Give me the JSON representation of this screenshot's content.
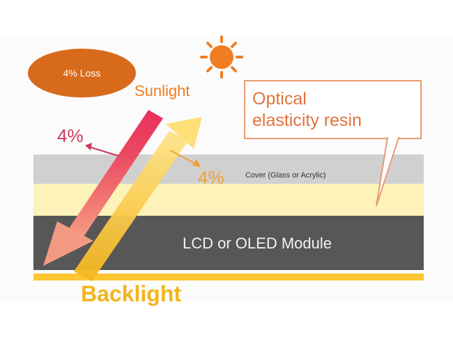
{
  "loss_bubble": {
    "label": "4% Loss"
  },
  "sun": {
    "label": "Sunlight"
  },
  "callout": {
    "line1": "Optical",
    "line2": "elasticity resin"
  },
  "reflections": {
    "sun_reflect": "4%",
    "back_reflect": "4%"
  },
  "layers": {
    "cover": "Cover (Glass or Acrylic)",
    "module": "LCD or OLED Module"
  },
  "backlight": {
    "label": "Backlight"
  },
  "colors": {
    "sun_orange": "#f07d22",
    "loss_orange": "#d86a1c",
    "sunlight_beam_top": "#e8305a",
    "sunlight_beam_bottom": "#f49a7a",
    "backlight_yellow": "#fbc632",
    "reflect_red": "#c93a5a",
    "reflect_orange": "#f0a030"
  }
}
